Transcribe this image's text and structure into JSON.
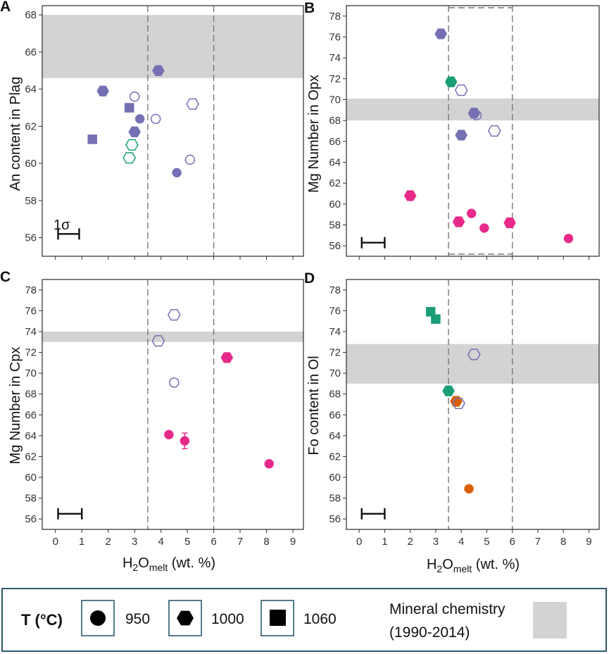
{
  "colors": {
    "purple": "#7570b3",
    "green": "#1b9e77",
    "pink": "#e7298a",
    "orange": "#d95f02",
    "band": "#d3d3d3",
    "dash": "#777777",
    "frame": "#2a2a2a",
    "legend_border": "#2b5a6e"
  },
  "x_axis": {
    "label_main": "H",
    "label_sub1": "2",
    "label_mid": "O",
    "label_sub2": "melt",
    "label_units": " (wt. %)",
    "xlim": [
      -0.5,
      9.4
    ],
    "ticks": [
      "0",
      "1",
      "2",
      "3",
      "4",
      "5",
      "6",
      "7",
      "8",
      "9"
    ],
    "dashed_lines": [
      3.5,
      6.0
    ]
  },
  "legend": {
    "title": "T (°C)",
    "items": [
      {
        "label": "950",
        "shape": "circle"
      },
      {
        "label": "1000",
        "shape": "hexagon"
      },
      {
        "label": "1060",
        "shape": "square"
      }
    ],
    "band_label_line1": "Mineral chemistry",
    "band_label_line2": "(1990-2014)"
  },
  "chart_data": [
    {
      "panel": "A",
      "type": "scatter",
      "ylabel": "An content in Plag",
      "ylim": [
        55,
        68.5
      ],
      "yticks": [
        "56",
        "58",
        "60",
        "62",
        "64",
        "66",
        "68"
      ],
      "band": [
        64.6,
        68.0
      ],
      "sigma_label": "1σ",
      "error_bar": {
        "x_start": 0.1,
        "x_end": 0.9,
        "y": 56.2
      },
      "points": [
        {
          "x": 3.9,
          "y": 65.0,
          "shape": "hexagon",
          "color": "purple",
          "filled": true
        },
        {
          "x": 1.8,
          "y": 63.9,
          "shape": "hexagon",
          "color": "purple",
          "filled": true
        },
        {
          "x": 3.0,
          "y": 63.6,
          "shape": "circle",
          "color": "purple",
          "filled": false
        },
        {
          "x": 5.2,
          "y": 63.2,
          "shape": "hexagon",
          "color": "purple",
          "filled": false
        },
        {
          "x": 2.8,
          "y": 63.0,
          "shape": "square",
          "color": "purple",
          "filled": true
        },
        {
          "x": 3.8,
          "y": 62.4,
          "shape": "circle",
          "color": "purple",
          "filled": false
        },
        {
          "x": 3.2,
          "y": 62.4,
          "shape": "circle",
          "color": "purple",
          "filled": true
        },
        {
          "x": 3.0,
          "y": 61.7,
          "shape": "hexagon",
          "color": "purple",
          "filled": true
        },
        {
          "x": 1.4,
          "y": 61.3,
          "shape": "square",
          "color": "purple",
          "filled": true
        },
        {
          "x": 2.9,
          "y": 61.0,
          "shape": "hexagon",
          "color": "green",
          "filled": false
        },
        {
          "x": 2.8,
          "y": 60.3,
          "shape": "hexagon",
          "color": "green",
          "filled": false
        },
        {
          "x": 5.1,
          "y": 60.2,
          "shape": "circle",
          "color": "purple",
          "filled": false
        },
        {
          "x": 4.6,
          "y": 59.5,
          "shape": "circle",
          "color": "purple",
          "filled": true
        }
      ]
    },
    {
      "panel": "B",
      "type": "scatter",
      "ylabel": "Mg Number in Opx",
      "ylim": [
        55,
        79
      ],
      "yticks": [
        "56",
        "58",
        "60",
        "62",
        "64",
        "66",
        "68",
        "70",
        "72",
        "74",
        "76",
        "78"
      ],
      "band": [
        68.0,
        70.1
      ],
      "error_bar": {
        "x_start": 0.1,
        "x_end": 1.0,
        "y": 56.3
      },
      "points": [
        {
          "x": 3.2,
          "y": 76.3,
          "shape": "hexagon",
          "color": "purple",
          "filled": true
        },
        {
          "x": 3.6,
          "y": 71.7,
          "shape": "hexagon",
          "color": "green",
          "filled": true
        },
        {
          "x": 4.0,
          "y": 70.9,
          "shape": "hexagon",
          "color": "purple",
          "filled": false
        },
        {
          "x": 4.5,
          "y": 68.7,
          "shape": "hexagon",
          "color": "purple",
          "filled": true
        },
        {
          "x": 4.6,
          "y": 68.5,
          "shape": "circle",
          "color": "purple",
          "filled": false
        },
        {
          "x": 5.3,
          "y": 67.0,
          "shape": "hexagon",
          "color": "purple",
          "filled": false
        },
        {
          "x": 4.0,
          "y": 66.6,
          "shape": "hexagon",
          "color": "purple",
          "filled": true
        },
        {
          "x": 2.0,
          "y": 60.8,
          "shape": "hexagon",
          "color": "pink",
          "filled": true
        },
        {
          "x": 4.4,
          "y": 59.1,
          "shape": "circle",
          "color": "pink",
          "filled": true
        },
        {
          "x": 3.9,
          "y": 58.3,
          "shape": "hexagon",
          "color": "pink",
          "filled": true
        },
        {
          "x": 5.9,
          "y": 58.2,
          "shape": "hexagon",
          "color": "pink",
          "filled": true
        },
        {
          "x": 4.9,
          "y": 57.7,
          "shape": "circle",
          "color": "pink",
          "filled": true
        },
        {
          "x": 8.2,
          "y": 56.7,
          "shape": "circle",
          "color": "pink",
          "filled": true
        }
      ]
    },
    {
      "panel": "C",
      "type": "scatter",
      "ylabel": "Mg Number in Cpx",
      "ylim": [
        55,
        79
      ],
      "yticks": [
        "56",
        "58",
        "60",
        "62",
        "64",
        "66",
        "68",
        "70",
        "72",
        "74",
        "76",
        "78"
      ],
      "band": [
        73.0,
        74.0
      ],
      "error_bar": {
        "x_start": 0.1,
        "x_end": 1.0,
        "y": 56.5
      },
      "points": [
        {
          "x": 4.5,
          "y": 75.6,
          "shape": "hexagon",
          "color": "purple",
          "filled": false
        },
        {
          "x": 3.9,
          "y": 73.1,
          "shape": "hexagon",
          "color": "purple",
          "filled": false
        },
        {
          "x": 6.5,
          "y": 71.5,
          "shape": "hexagon",
          "color": "pink",
          "filled": true
        },
        {
          "x": 4.5,
          "y": 69.1,
          "shape": "circle",
          "color": "purple",
          "filled": false
        },
        {
          "x": 4.3,
          "y": 64.1,
          "shape": "circle",
          "color": "pink",
          "filled": true
        },
        {
          "x": 4.9,
          "y": 63.5,
          "shape": "circle",
          "color": "pink",
          "filled": true,
          "yerr": 0.75
        },
        {
          "x": 8.1,
          "y": 61.3,
          "shape": "circle",
          "color": "pink",
          "filled": true
        }
      ]
    },
    {
      "panel": "D",
      "type": "scatter",
      "ylabel": "Fo content in Ol",
      "ylim": [
        55,
        79
      ],
      "yticks": [
        "56",
        "58",
        "60",
        "62",
        "64",
        "66",
        "68",
        "70",
        "72",
        "74",
        "76",
        "78"
      ],
      "band": [
        69.0,
        72.8
      ],
      "error_bar": {
        "x_start": 0.1,
        "x_end": 1.0,
        "y": 56.5
      },
      "points": [
        {
          "x": 2.8,
          "y": 75.9,
          "shape": "square",
          "color": "green",
          "filled": true
        },
        {
          "x": 3.0,
          "y": 75.2,
          "shape": "square",
          "color": "green",
          "filled": true
        },
        {
          "x": 4.5,
          "y": 71.8,
          "shape": "hexagon",
          "color": "purple",
          "filled": false
        },
        {
          "x": 3.5,
          "y": 68.3,
          "shape": "hexagon",
          "color": "green",
          "filled": true
        },
        {
          "x": 3.8,
          "y": 67.3,
          "shape": "hexagon",
          "color": "orange",
          "filled": true
        },
        {
          "x": 3.9,
          "y": 67.1,
          "shape": "hexagon",
          "color": "purple",
          "filled": false
        },
        {
          "x": 4.3,
          "y": 58.9,
          "shape": "circle",
          "color": "orange",
          "filled": true
        }
      ]
    }
  ]
}
